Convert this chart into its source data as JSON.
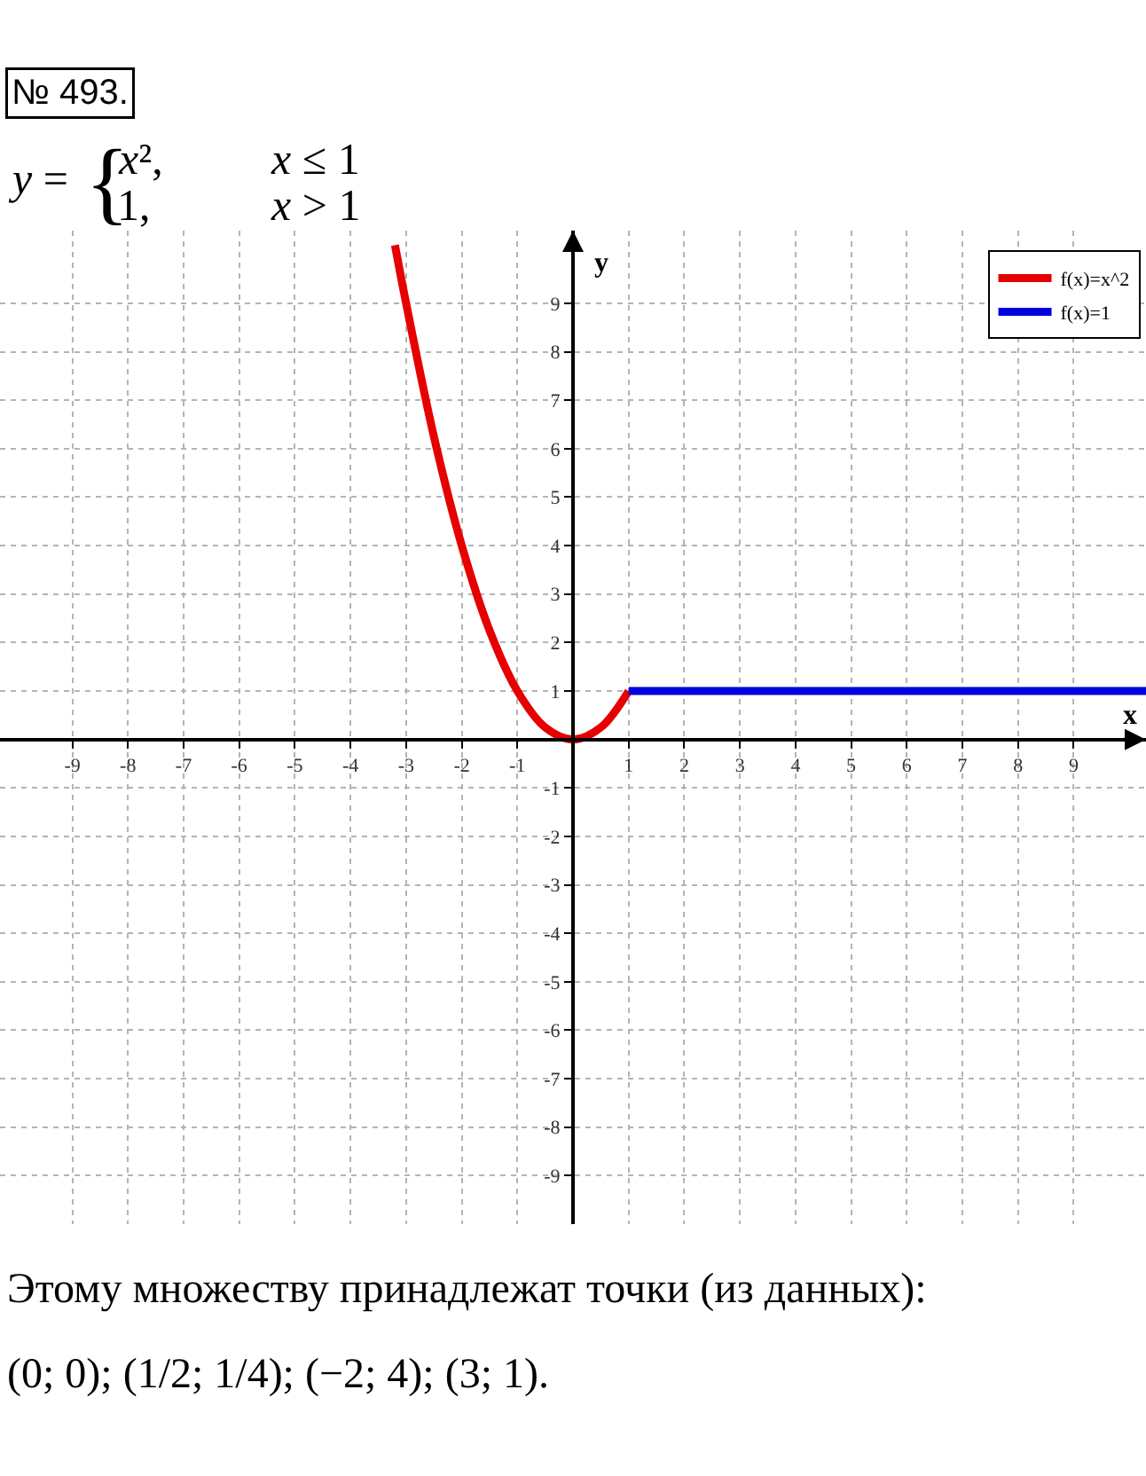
{
  "chart_data": {
    "type": "line",
    "title": "№ 493.",
    "subtitle": "y = {x², x ≤ 1\n1, x > 1",
    "xlabel": "x",
    "ylabel": "y",
    "series": [
      {
        "name": "f(x)=x^2",
        "color": "#e60000",
        "x": [
          -3.2,
          -3,
          -2.5,
          -2,
          -1.5,
          -1,
          -0.5,
          0,
          0.5,
          1
        ],
        "values": [
          10.2,
          9,
          6.25,
          4,
          2.25,
          1,
          0.25,
          0,
          0.25,
          1
        ]
      },
      {
        "name": "f(x)=1",
        "color": "#0000dd",
        "x": [
          1,
          10.3
        ],
        "values": [
          1,
          1
        ]
      }
    ],
    "xlim": [
      -10.3,
      10.3
    ],
    "ylim": [
      -10,
      10.5
    ],
    "xticks": [
      -9,
      -8,
      -7,
      -6,
      -5,
      -4,
      -3,
      -2,
      -1,
      1,
      2,
      3,
      4,
      5,
      6,
      7,
      8,
      9
    ],
    "yticks": [
      -9,
      -8,
      -7,
      -6,
      -5,
      -4,
      -3,
      -2,
      -1,
      1,
      2,
      3,
      4,
      5,
      6,
      7,
      8,
      9
    ],
    "grid": true,
    "legend": "top right",
    "annotations": [
      "Этому множеству принадлежат точки (из данных):",
      "(0; 0); (1/2; 1/4); (−2; 4); (3; 1)."
    ]
  }
}
